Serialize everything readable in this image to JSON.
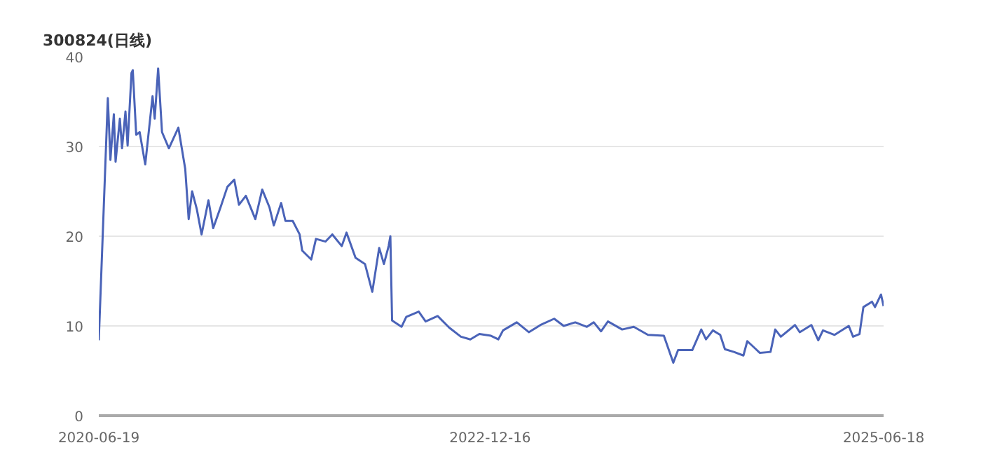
{
  "chart_data": {
    "type": "line",
    "title": "300824(日线)",
    "x": [
      "2020-06-19",
      "2020-07-10",
      "2020-07-16",
      "2020-07-24",
      "2020-07-28",
      "2020-08-07",
      "2020-08-12",
      "2020-08-20",
      "2020-08-25",
      "2020-09-03",
      "2020-09-06",
      "2020-09-14",
      "2020-09-22",
      "2020-10-05",
      "2020-10-22",
      "2020-10-27",
      "2020-11-04",
      "2020-11-13",
      "2020-11-29",
      "2020-12-21",
      "2021-01-06",
      "2021-01-14",
      "2021-01-22",
      "2021-02-02",
      "2021-02-13",
      "2021-03-01",
      "2021-03-12",
      "2021-03-29",
      "2021-04-14",
      "2021-04-30",
      "2021-05-11",
      "2021-05-27",
      "2021-06-18",
      "2021-07-04",
      "2021-07-21",
      "2021-07-31",
      "2021-08-17",
      "2021-08-27",
      "2021-09-13",
      "2021-09-29",
      "2021-10-05",
      "2021-10-26",
      "2021-11-06",
      "2021-11-28",
      "2021-12-14",
      "2022-01-05",
      "2022-01-16",
      "2022-02-06",
      "2022-02-28",
      "2022-03-17",
      "2022-04-02",
      "2022-04-13",
      "2022-04-24",
      "2022-04-28",
      "2022-05-02",
      "2022-05-24",
      "2022-06-04",
      "2022-07-03",
      "2022-07-19",
      "2022-08-16",
      "2022-09-12",
      "2022-10-09",
      "2022-10-31",
      "2022-11-21",
      "2022-12-18",
      "2023-01-04",
      "2023-01-15",
      "2023-02-16",
      "2023-03-16",
      "2023-04-12",
      "2023-05-14",
      "2023-06-05",
      "2023-07-02",
      "2023-07-29",
      "2023-08-14",
      "2023-08-31",
      "2023-09-16",
      "2023-10-19",
      "2023-11-15",
      "2023-12-18",
      "2024-01-24",
      "2024-02-15",
      "2024-02-26",
      "2024-03-30",
      "2024-04-20",
      "2024-05-01",
      "2024-05-17",
      "2024-06-03",
      "2024-06-14",
      "2024-07-05",
      "2024-07-27",
      "2024-08-05",
      "2024-08-23",
      "2024-09-03",
      "2024-09-28",
      "2024-10-09",
      "2024-10-22",
      "2024-11-24",
      "2024-12-05",
      "2025-01-01",
      "2025-01-17",
      "2025-01-28",
      "2025-02-24",
      "2025-03-29",
      "2025-04-08",
      "2025-04-23",
      "2025-05-02",
      "2025-05-22",
      "2025-05-29",
      "2025-06-12",
      "2025-06-18"
    ],
    "series": [
      {
        "color": "#4a63b8",
        "values": [
          8.4,
          35.4,
          28.5,
          33.6,
          28.3,
          33.1,
          29.8,
          33.9,
          30.1,
          38.2,
          38.5,
          31.3,
          31.6,
          28.0,
          35.6,
          33.1,
          38.7,
          31.6,
          29.8,
          32.1,
          27.5,
          21.9,
          25.0,
          23.0,
          20.2,
          24.0,
          20.9,
          23.2,
          25.5,
          26.3,
          23.5,
          24.5,
          21.9,
          25.2,
          23.2,
          21.2,
          23.7,
          21.7,
          21.7,
          20.2,
          18.4,
          17.4,
          19.7,
          19.4,
          20.2,
          18.9,
          20.4,
          17.6,
          16.9,
          13.8,
          18.7,
          16.9,
          18.9,
          20.0,
          10.6,
          9.9,
          11.0,
          11.6,
          10.5,
          11.1,
          9.8,
          8.8,
          8.5,
          9.1,
          8.9,
          8.5,
          9.5,
          10.4,
          9.3,
          10.1,
          10.8,
          10.0,
          10.4,
          9.9,
          10.4,
          9.4,
          10.5,
          9.6,
          9.9,
          9.0,
          8.9,
          5.9,
          7.3,
          7.3,
          9.6,
          8.5,
          9.5,
          9.0,
          7.4,
          7.1,
          6.7,
          8.3,
          7.5,
          7.0,
          7.1,
          9.6,
          8.8,
          10.1,
          9.3,
          10.1,
          8.4,
          9.5,
          9.0,
          10.0,
          8.8,
          9.1,
          12.1,
          12.7,
          12.1,
          13.5,
          12.2
        ]
      }
    ],
    "xlim": [
      "2020-06-19",
      "2025-06-18"
    ],
    "xticks": [
      "2020-06-19",
      "2022-12-16",
      "2025-06-18"
    ],
    "ylim": [
      0,
      40
    ],
    "yticks": [
      0,
      10,
      20,
      30,
      40
    ],
    "grid": "y",
    "marker": "none",
    "line_style": "solid"
  }
}
